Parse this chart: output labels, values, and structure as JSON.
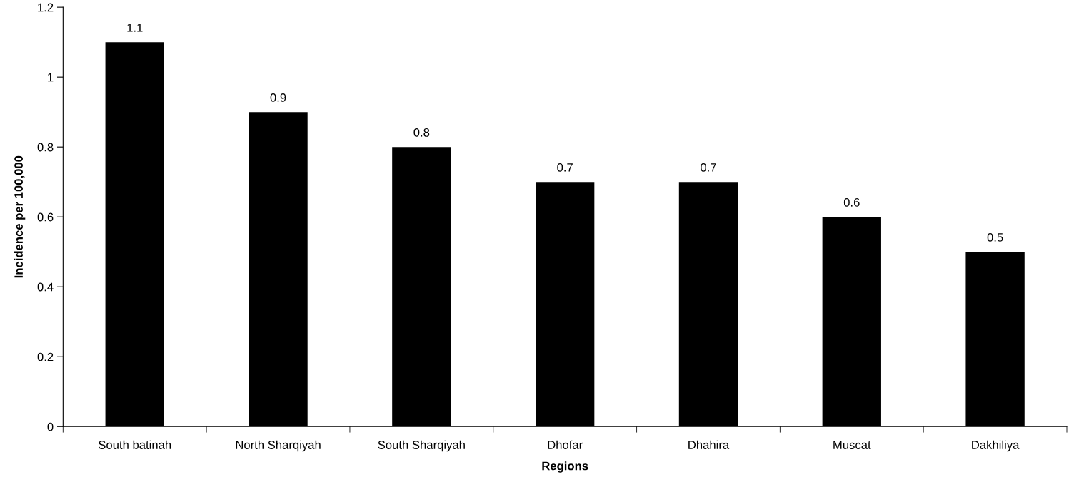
{
  "chart_data": {
    "type": "bar",
    "xlabel": "Regions",
    "ylabel": "Incidence per 100,000",
    "categories": [
      "South batinah",
      "North Sharqiyah",
      "South Sharqiyah",
      "Dhofar",
      "Dhahira",
      "Muscat",
      "Dakhiliya"
    ],
    "values": [
      1.1,
      0.9,
      0.8,
      0.7,
      0.7,
      0.6,
      0.5
    ],
    "color": "#000000",
    "ylim": [
      0,
      1.2
    ],
    "yticks": [
      0,
      0.2,
      0.4,
      0.6,
      0.8,
      1,
      1.2
    ],
    "grid": false,
    "data_labels": true
  }
}
